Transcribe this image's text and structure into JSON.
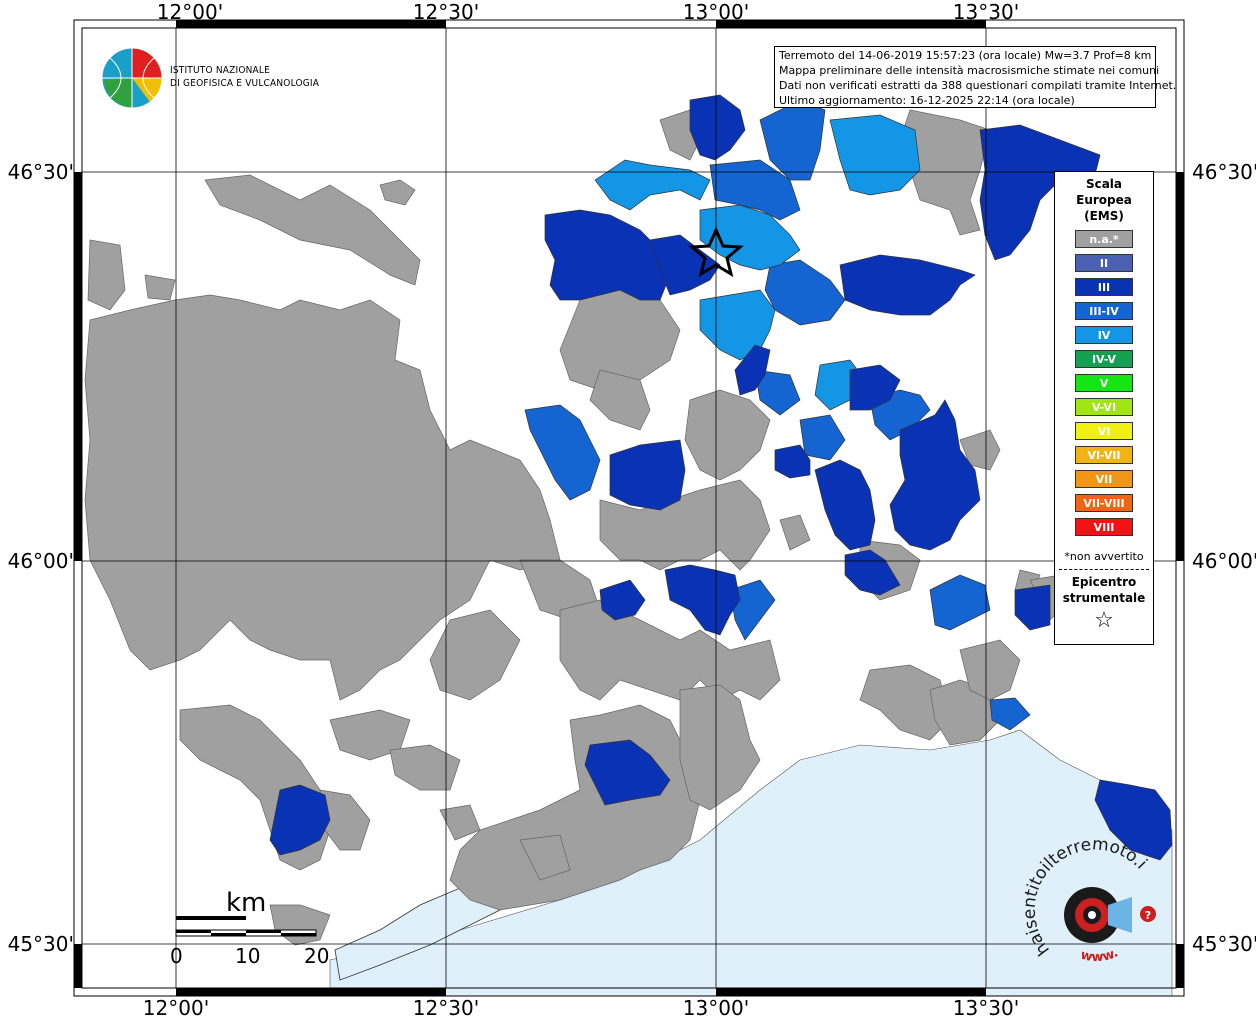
{
  "map": {
    "lon_ticks": [
      "12°00'",
      "12°30'",
      "13°00'",
      "13°30'"
    ],
    "lat_ticks": [
      "46°30'",
      "46°00'",
      "45°30'"
    ]
  },
  "info": {
    "line1": "Terremoto del 14-06-2019 15:57:23 (ora locale) Mw=3.7 Prof=8 km",
    "line2": "Mappa preliminare delle intensità macrosismiche stimate nei comuni",
    "line3": "Dati non verificati estratti da 388 questionari compilati tramite Internet.",
    "line4": "Ultimo aggiornamento: 16-12-2025 22:14 (ora locale)"
  },
  "logo": {
    "line1": "ISTITUTO NAZIONALE",
    "line2": "DI GEOFISICA E VULCANOLOGIA"
  },
  "legend": {
    "title1": "Scala",
    "title2": "Europea",
    "title3": "(EMS)",
    "items": [
      {
        "label": "n.a.*",
        "color": "#a0a0a0"
      },
      {
        "label": "II",
        "color": "#4a60b0"
      },
      {
        "label": "III",
        "color": "#0a32b4"
      },
      {
        "label": "III-IV",
        "color": "#1464d2"
      },
      {
        "label": "IV",
        "color": "#1496e6"
      },
      {
        "label": "IV-V",
        "color": "#14a050"
      },
      {
        "label": "V",
        "color": "#14e614"
      },
      {
        "label": "V-VI",
        "color": "#a0e614"
      },
      {
        "label": "VI",
        "color": "#f0f014"
      },
      {
        "label": "VI-VII",
        "color": "#f0b414"
      },
      {
        "label": "VII",
        "color": "#f09614"
      },
      {
        "label": "VII-VIII",
        "color": "#f06414"
      },
      {
        "label": "VIII",
        "color": "#f01414"
      }
    ],
    "note": "*non avvertito",
    "epicentre1": "Epicentro",
    "epicentre2": "strumentale"
  },
  "scalebar": {
    "unit": "km",
    "labels": [
      "0",
      "10",
      "20"
    ]
  },
  "colors": {
    "gray": "#a0a0a0",
    "iii": "#0a32b4",
    "iii_iv": "#1464d2",
    "iv": "#1496e6",
    "sea": "#e0f0fa"
  },
  "watermark": {
    "text": "haisentitoilterremoto.it",
    "url": "www."
  }
}
